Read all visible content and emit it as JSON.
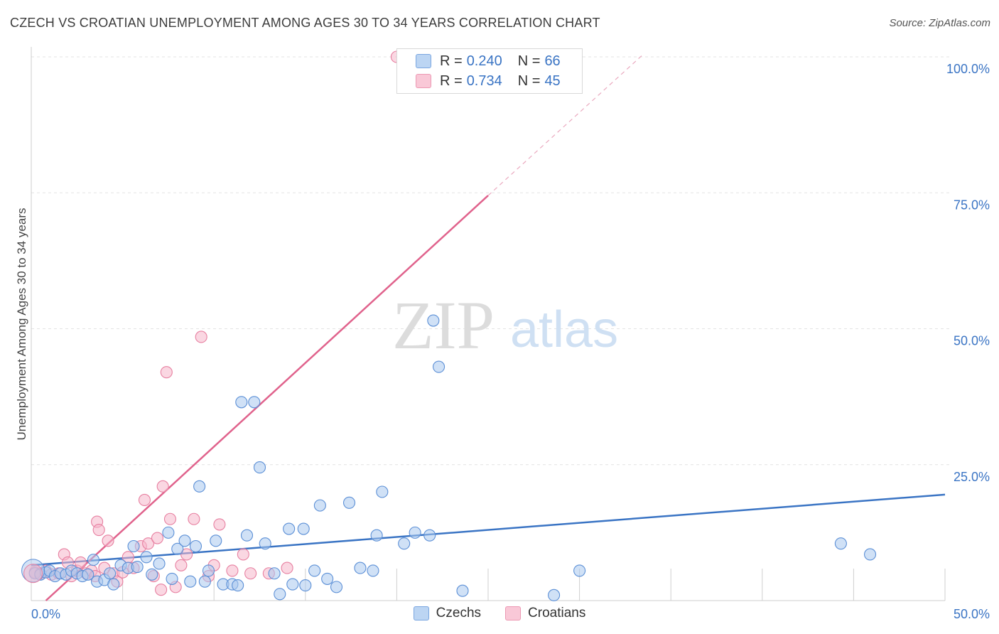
{
  "title": "CZECH VS CROATIAN UNEMPLOYMENT AMONG AGES 30 TO 34 YEARS CORRELATION CHART",
  "source": "Source: ZipAtlas.com",
  "watermark": {
    "zip": "ZIP",
    "atlas": "atlas"
  },
  "legend": {
    "czechs": {
      "r_label": "R =",
      "r_value": "0.240",
      "n_label": "N =",
      "n_value": "66"
    },
    "croatians": {
      "r_label": "R =",
      "r_value": "0.734",
      "n_label": "N =",
      "n_value": "45"
    }
  },
  "colors": {
    "czech_fill": "#a9c8ee",
    "czech_stroke": "#5b8fd6",
    "czech_line": "#3a74c4",
    "croatian_fill": "#f6b6ca",
    "croatian_stroke": "#e77fa0",
    "croatian_line": "#e0628c",
    "grid": "#e3e3e3",
    "axis_text": "#3a74c4"
  },
  "chart_data": {
    "type": "scatter",
    "xlabel": "",
    "ylabel": "Unemployment Among Ages 30 to 34 years",
    "xlim": [
      0,
      50
    ],
    "ylim": [
      0,
      100
    ],
    "x_tick_labels": [
      "0.0%",
      "50.0%"
    ],
    "y_ticks": [
      25,
      50,
      75,
      100
    ],
    "y_tick_labels": [
      "25.0%",
      "50.0%",
      "75.0%",
      "100.0%"
    ],
    "grid": true,
    "legend_position": "bottom-center",
    "series": [
      {
        "name": "Czechs",
        "points": [
          [
            0.2,
            5.0
          ],
          [
            0.5,
            4.8
          ],
          [
            0.8,
            5.2
          ],
          [
            1.0,
            5.5
          ],
          [
            1.3,
            4.5
          ],
          [
            1.6,
            5.0
          ],
          [
            1.9,
            4.8
          ],
          [
            2.2,
            5.5
          ],
          [
            2.5,
            5.0
          ],
          [
            2.8,
            4.5
          ],
          [
            3.1,
            4.8
          ],
          [
            3.4,
            7.5
          ],
          [
            3.6,
            3.5
          ],
          [
            4.0,
            3.8
          ],
          [
            4.3,
            5.0
          ],
          [
            4.5,
            3.0
          ],
          [
            4.9,
            6.5
          ],
          [
            5.3,
            6.0
          ],
          [
            5.6,
            10.0
          ],
          [
            5.8,
            6.2
          ],
          [
            6.3,
            8.0
          ],
          [
            6.6,
            4.8
          ],
          [
            7.0,
            6.8
          ],
          [
            7.5,
            12.5
          ],
          [
            7.7,
            4.0
          ],
          [
            8.0,
            9.5
          ],
          [
            8.4,
            11.0
          ],
          [
            8.7,
            3.5
          ],
          [
            9.0,
            10.0
          ],
          [
            9.2,
            21.0
          ],
          [
            9.5,
            3.5
          ],
          [
            9.7,
            5.5
          ],
          [
            10.1,
            11.0
          ],
          [
            10.5,
            3.0
          ],
          [
            11.0,
            3.0
          ],
          [
            11.3,
            2.8
          ],
          [
            11.5,
            36.5
          ],
          [
            11.8,
            12.0
          ],
          [
            12.2,
            36.5
          ],
          [
            12.5,
            24.5
          ],
          [
            12.8,
            10.5
          ],
          [
            13.3,
            5.0
          ],
          [
            13.6,
            1.2
          ],
          [
            14.1,
            13.2
          ],
          [
            14.3,
            3.0
          ],
          [
            14.9,
            13.2
          ],
          [
            15.0,
            2.8
          ],
          [
            15.5,
            5.5
          ],
          [
            15.8,
            17.5
          ],
          [
            16.2,
            4.0
          ],
          [
            16.7,
            2.5
          ],
          [
            17.4,
            18.0
          ],
          [
            18.0,
            6.0
          ],
          [
            18.7,
            5.5
          ],
          [
            18.9,
            12.0
          ],
          [
            19.2,
            20.0
          ],
          [
            20.4,
            10.5
          ],
          [
            21.0,
            12.5
          ],
          [
            21.8,
            12.0
          ],
          [
            22.0,
            51.5
          ],
          [
            22.3,
            43.0
          ],
          [
            23.6,
            1.8
          ],
          [
            28.6,
            1.0
          ],
          [
            30.0,
            5.5
          ],
          [
            44.3,
            10.5
          ],
          [
            45.9,
            8.5
          ]
        ],
        "trend": {
          "x": [
            0,
            50
          ],
          "y": [
            6.5,
            19.5
          ]
        }
      },
      {
        "name": "Croatians",
        "points": [
          [
            0.2,
            5.2
          ],
          [
            0.5,
            5.0
          ],
          [
            0.8,
            5.5
          ],
          [
            1.1,
            4.8
          ],
          [
            1.5,
            5.0
          ],
          [
            1.8,
            8.5
          ],
          [
            2.0,
            7.0
          ],
          [
            2.2,
            4.5
          ],
          [
            2.5,
            5.5
          ],
          [
            2.7,
            7.0
          ],
          [
            3.0,
            5.0
          ],
          [
            3.3,
            5.5
          ],
          [
            3.5,
            4.5
          ],
          [
            3.6,
            14.5
          ],
          [
            3.7,
            13.0
          ],
          [
            4.0,
            6.0
          ],
          [
            4.2,
            11.0
          ],
          [
            4.5,
            5.0
          ],
          [
            4.7,
            3.5
          ],
          [
            5.0,
            5.2
          ],
          [
            5.3,
            8.0
          ],
          [
            5.6,
            6.0
          ],
          [
            6.0,
            10.0
          ],
          [
            6.2,
            18.5
          ],
          [
            6.4,
            10.5
          ],
          [
            6.7,
            4.5
          ],
          [
            6.9,
            11.5
          ],
          [
            7.1,
            2.0
          ],
          [
            7.2,
            21.0
          ],
          [
            7.4,
            42.0
          ],
          [
            7.6,
            15.0
          ],
          [
            7.9,
            2.5
          ],
          [
            8.2,
            6.5
          ],
          [
            8.5,
            8.5
          ],
          [
            8.9,
            15.0
          ],
          [
            9.3,
            48.5
          ],
          [
            9.7,
            4.5
          ],
          [
            10.0,
            6.5
          ],
          [
            10.3,
            14.0
          ],
          [
            11.0,
            5.5
          ],
          [
            11.6,
            8.5
          ],
          [
            12.0,
            5.0
          ],
          [
            20.0,
            100.0
          ],
          [
            13.0,
            5.0
          ],
          [
            14.0,
            6.0
          ]
        ],
        "trend": {
          "x": [
            0.8,
            25.0
          ],
          "y": [
            0.0,
            74.5
          ]
        },
        "trend_dashed": {
          "x": [
            25.0,
            33.5
          ],
          "y": [
            74.5,
            100.5
          ]
        }
      }
    ]
  },
  "bottom_legend": {
    "czechs": "Czechs",
    "croatians": "Croatians"
  }
}
